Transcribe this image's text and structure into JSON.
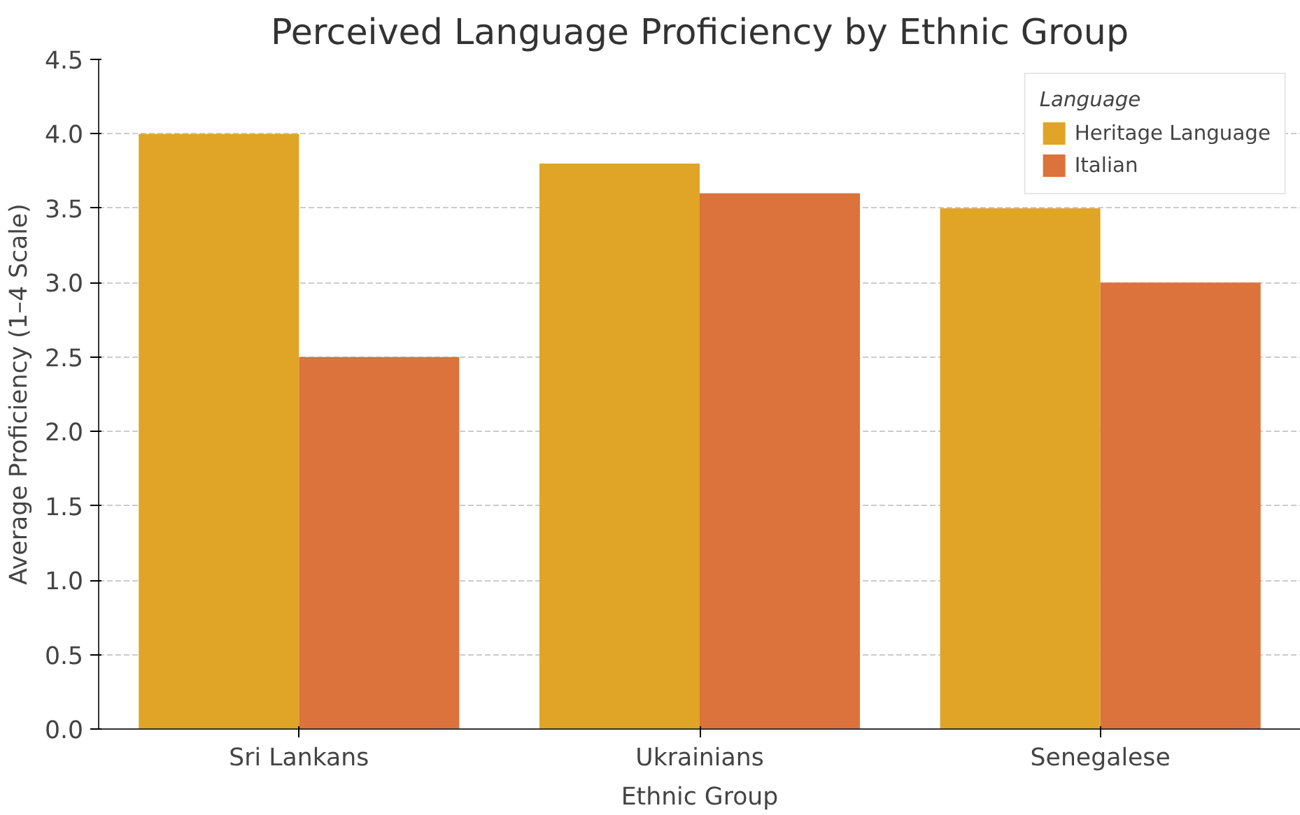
{
  "chart_data": {
    "type": "bar",
    "title": "Perceived Language Proficiency by Ethnic Group",
    "xlabel": "Ethnic Group",
    "ylabel": "Average Proficiency (1–4 Scale)",
    "legend_title": "Language",
    "categories": [
      "Sri Lankans",
      "Ukrainians",
      "Senegalese"
    ],
    "series": [
      {
        "name": "Heritage Language",
        "color": "#e0a526",
        "values": [
          4.0,
          3.8,
          3.5
        ]
      },
      {
        "name": "Italian",
        "color": "#dc723c",
        "values": [
          2.5,
          3.6,
          3.0
        ]
      }
    ],
    "ylim": [
      0,
      4.5
    ],
    "yticks": [
      {
        "value": 0,
        "label": "0.0"
      },
      {
        "value": 0.5,
        "label": "0.5"
      },
      {
        "value": 1,
        "label": "1.0"
      },
      {
        "value": 1.5,
        "label": "1.5"
      },
      {
        "value": 2,
        "label": "2.0"
      },
      {
        "value": 2.5,
        "label": "2.5"
      },
      {
        "value": 3,
        "label": "3.0"
      },
      {
        "value": 3.5,
        "label": "3.5"
      },
      {
        "value": 4,
        "label": "4.0"
      },
      {
        "value": 4.5,
        "label": "4.5"
      }
    ],
    "grid": "y",
    "legend": "top right"
  }
}
